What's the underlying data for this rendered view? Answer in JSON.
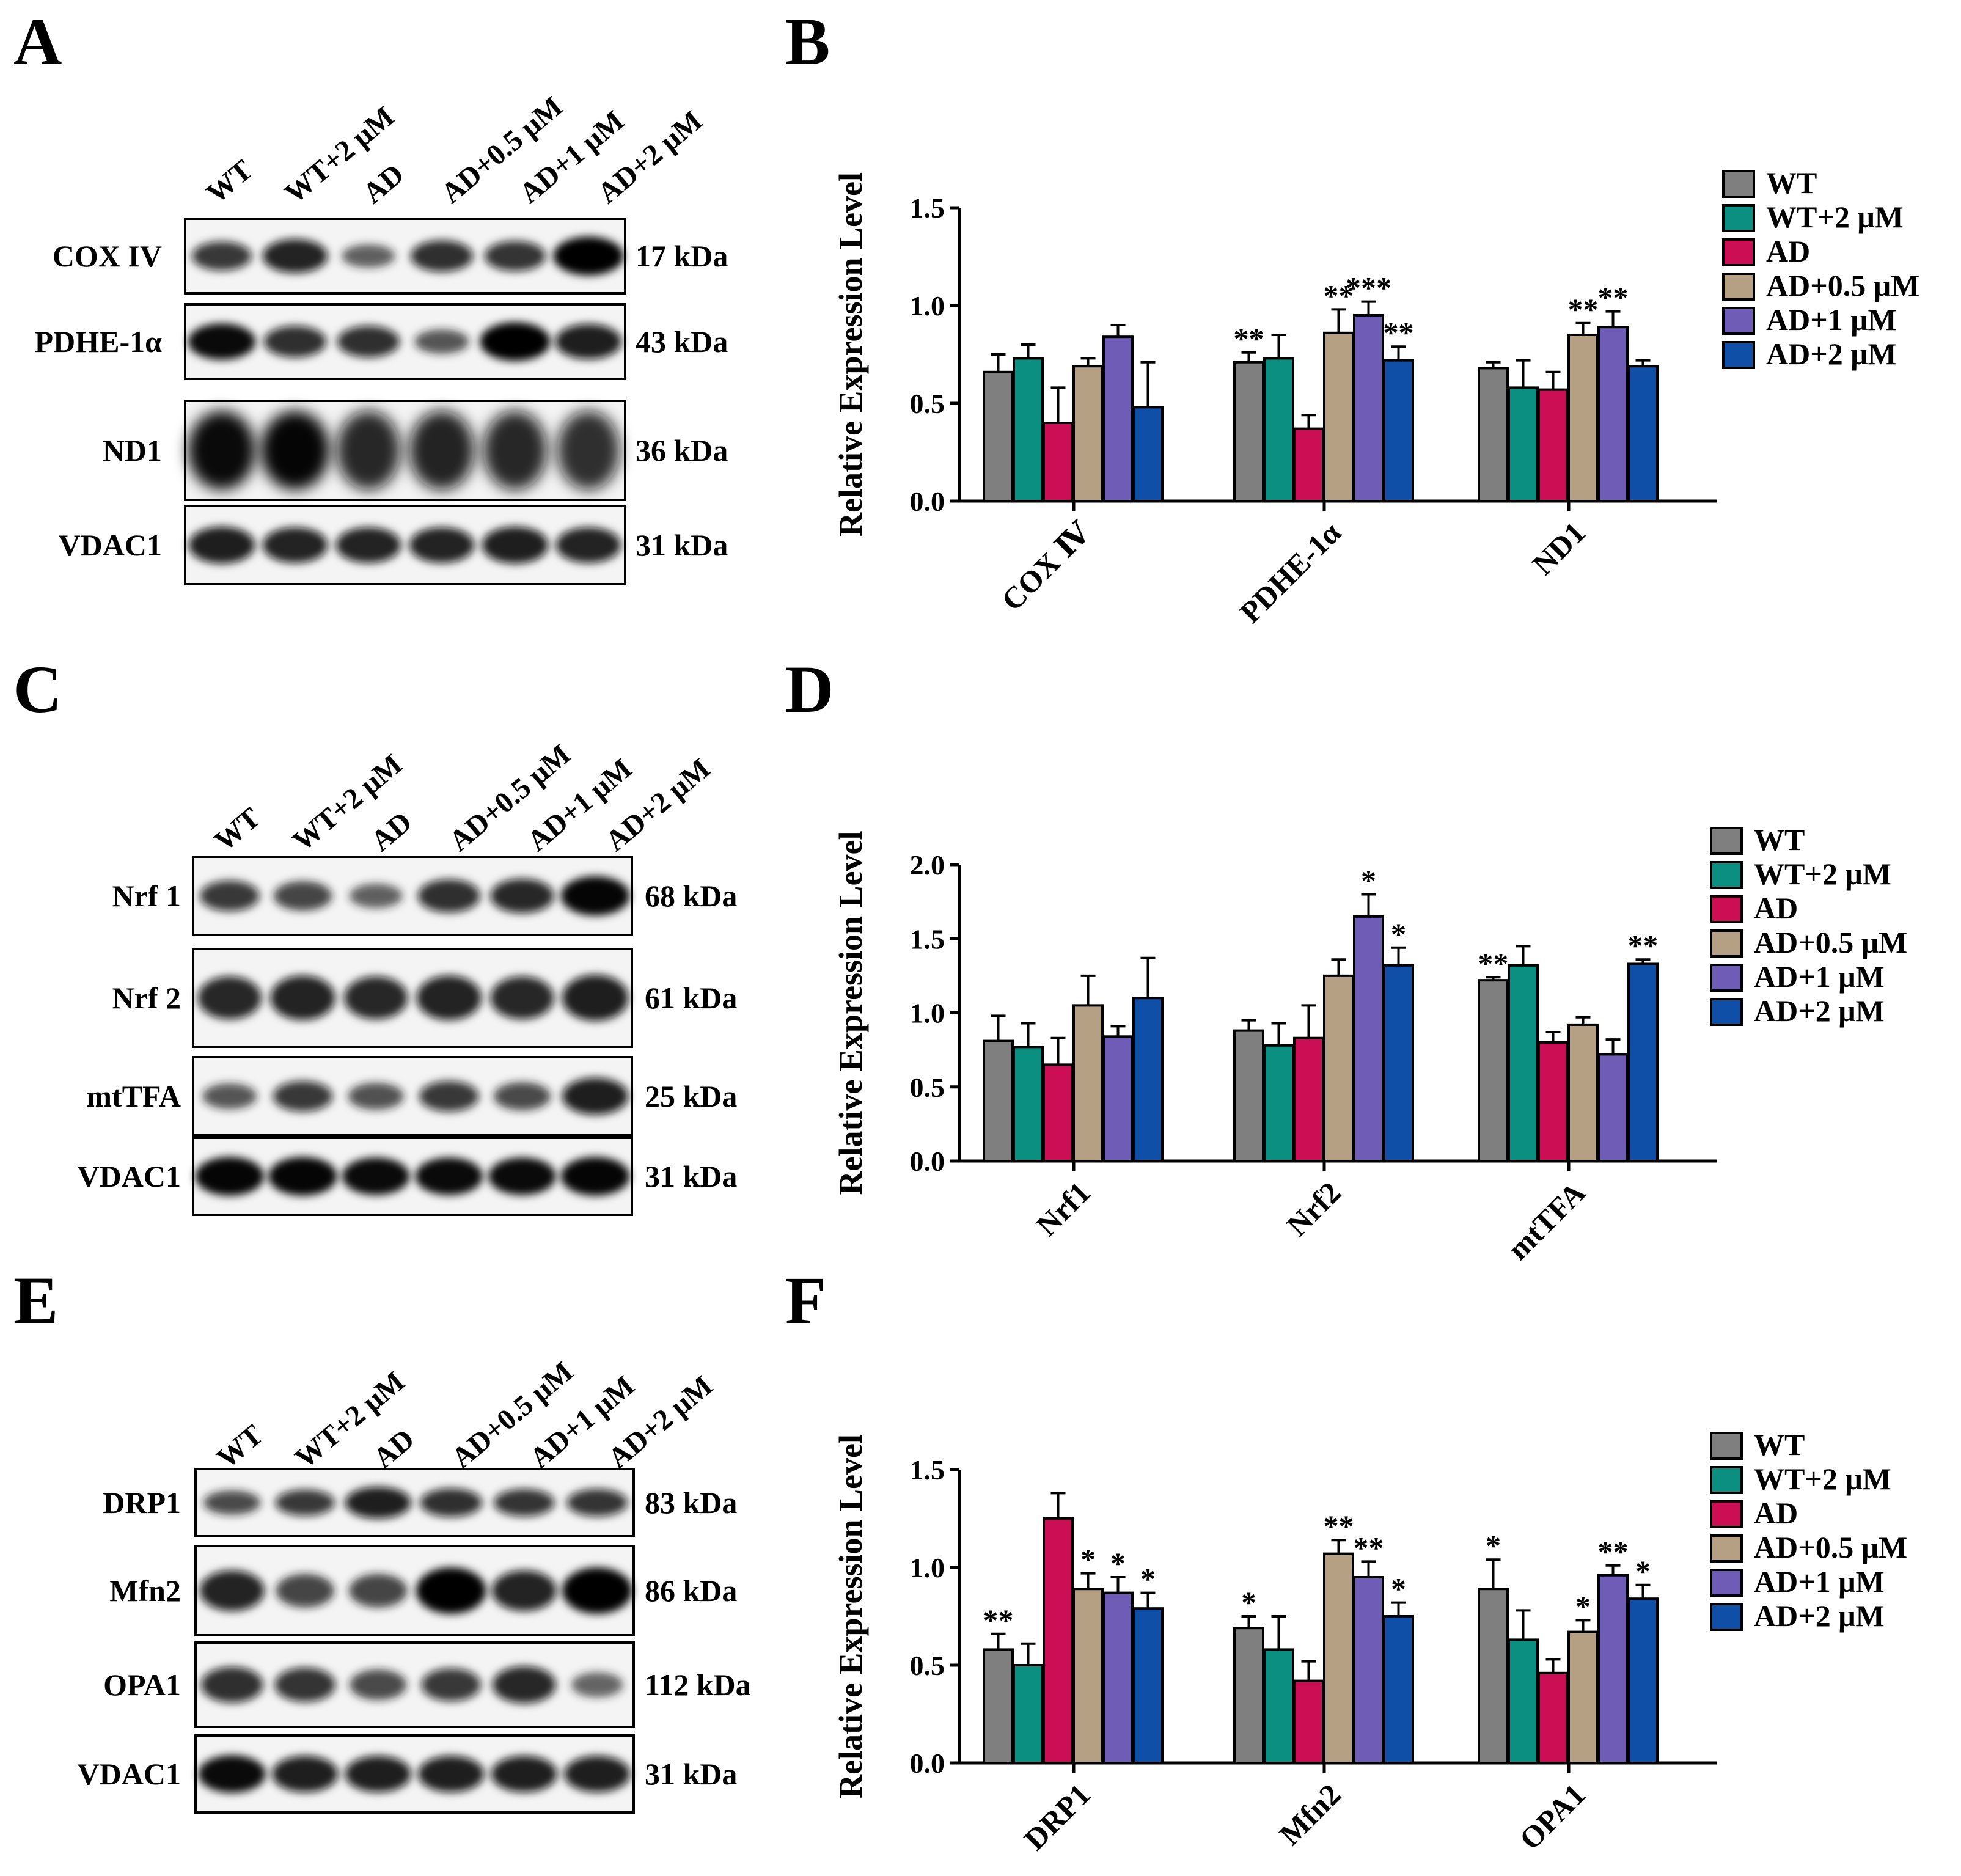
{
  "colors": {
    "WT": "#7f7f7f",
    "WT+2 μM": "#0a8f80",
    "AD": "#cc0f55",
    "AD+0.5 μM": "#b6a083",
    "AD+1 μM": "#6e5cb6",
    "AD+2 μM": "#0f4fa8"
  },
  "blots": [
    {
      "letter": "A",
      "lanes": [
        "WT",
        "WT+2 μM",
        "AD",
        "AD+0.5 μM",
        "AD+1 μM",
        "AD+2 μM"
      ],
      "rows": [
        {
          "protein": "COX IV",
          "kda": "17 kDa",
          "intensities": [
            0.6,
            0.8,
            0.35,
            0.7,
            0.65,
            1.0
          ]
        },
        {
          "protein": "PDHE-1α",
          "kda": "43 kDa",
          "intensities": [
            0.9,
            0.7,
            0.7,
            0.4,
            1.0,
            0.85
          ]
        },
        {
          "protein": "ND1",
          "kda": "36 kDa",
          "intensities": [
            0.9,
            0.95,
            0.75,
            0.8,
            0.75,
            0.7
          ]
        },
        {
          "protein": "VDAC1",
          "kda": "31 kDa",
          "intensities": [
            0.85,
            0.8,
            0.8,
            0.8,
            0.85,
            0.8
          ]
        }
      ]
    },
    {
      "letter": "C",
      "lanes": [
        "WT",
        "WT+2 μM",
        "AD",
        "AD+0.5 μM",
        "AD+1 μM",
        "AD+2 μM"
      ],
      "rows": [
        {
          "protein": "Nrf 1",
          "kda": "68 kDa",
          "intensities": [
            0.6,
            0.55,
            0.35,
            0.7,
            0.75,
            0.95
          ]
        },
        {
          "protein": "Nrf 2",
          "kda": "61 kDa",
          "intensities": [
            0.75,
            0.8,
            0.75,
            0.8,
            0.75,
            0.85
          ]
        },
        {
          "protein": "mtTFA",
          "kda": "25 kDa",
          "intensities": [
            0.4,
            0.6,
            0.45,
            0.6,
            0.5,
            0.85
          ]
        },
        {
          "protein": "VDAC1",
          "kda": "31 kDa",
          "intensities": [
            0.95,
            0.95,
            0.9,
            0.9,
            0.9,
            0.95
          ]
        }
      ]
    },
    {
      "letter": "E",
      "lanes": [
        "WT",
        "WT+2 μM",
        "AD",
        "AD+0.5 μM",
        "AD+1 μM",
        "AD+2 μM"
      ],
      "rows": [
        {
          "protein": "DRP1",
          "kda": "83 kDa",
          "intensities": [
            0.5,
            0.6,
            0.85,
            0.7,
            0.65,
            0.65
          ]
        },
        {
          "protein": "Mfn2",
          "kda": "86 kDa",
          "intensities": [
            0.8,
            0.55,
            0.55,
            1.0,
            0.8,
            1.0
          ]
        },
        {
          "protein": "OPA1",
          "kda": "112 kDa",
          "intensities": [
            0.7,
            0.65,
            0.5,
            0.6,
            0.75,
            0.3
          ]
        },
        {
          "protein": "VDAC1",
          "kda": "31 kDa",
          "intensities": [
            0.9,
            0.85,
            0.85,
            0.85,
            0.85,
            0.85
          ]
        }
      ]
    }
  ],
  "chart_data": [
    {
      "letter": "B",
      "type": "bar",
      "title": "",
      "ylabel": "Relative Expression Level",
      "xlabel": "",
      "ylim": [
        0,
        1.5
      ],
      "yticks": [
        "0.0",
        "0.5",
        "1.0",
        "1.5"
      ],
      "ytick_values": [
        0,
        0.5,
        1.0,
        1.5
      ],
      "categories": [
        "COX Ⅳ",
        "PDHE-1α",
        "ND1"
      ],
      "legend_position": "top-right",
      "series": [
        {
          "name": "WT",
          "values": [
            0.66,
            0.71,
            0.68
          ],
          "errors": [
            0.09,
            0.05,
            0.03
          ],
          "sig": [
            "",
            "**",
            ""
          ]
        },
        {
          "name": "WT+2 μM",
          "values": [
            0.73,
            0.73,
            0.58
          ],
          "errors": [
            0.07,
            0.12,
            0.14
          ],
          "sig": [
            "",
            "",
            ""
          ]
        },
        {
          "name": "AD",
          "values": [
            0.4,
            0.37,
            0.57
          ],
          "errors": [
            0.18,
            0.07,
            0.09
          ],
          "sig": [
            "",
            "",
            ""
          ]
        },
        {
          "name": "AD+0.5 μM",
          "values": [
            0.69,
            0.86,
            0.85
          ],
          "errors": [
            0.04,
            0.12,
            0.06
          ],
          "sig": [
            "",
            "**",
            "**"
          ]
        },
        {
          "name": "AD+1 μM",
          "values": [
            0.84,
            0.95,
            0.89
          ],
          "errors": [
            0.06,
            0.07,
            0.08
          ],
          "sig": [
            "",
            "***",
            "**"
          ]
        },
        {
          "name": "AD+2 μM",
          "values": [
            0.48,
            0.72,
            0.69
          ],
          "errors": [
            0.23,
            0.07,
            0.03
          ],
          "sig": [
            "",
            "**",
            ""
          ]
        }
      ]
    },
    {
      "letter": "D",
      "type": "bar",
      "title": "",
      "ylabel": "Relative Expression Level",
      "xlabel": "",
      "ylim": [
        0,
        2.0
      ],
      "yticks": [
        "0.0",
        "0.5",
        "1.0",
        "1.5",
        "2.0"
      ],
      "ytick_values": [
        0,
        0.5,
        1.0,
        1.5,
        2.0
      ],
      "categories": [
        "Nrf1",
        "Nrf2",
        "mtTFA"
      ],
      "legend_position": "top-right",
      "series": [
        {
          "name": "WT",
          "values": [
            0.81,
            0.88,
            1.22
          ],
          "errors": [
            0.17,
            0.07,
            0.02
          ],
          "sig": [
            "",
            "",
            "**"
          ]
        },
        {
          "name": "WT+2 μM",
          "values": [
            0.77,
            0.78,
            1.32
          ],
          "errors": [
            0.16,
            0.15,
            0.13
          ],
          "sig": [
            "",
            "",
            ""
          ]
        },
        {
          "name": "AD",
          "values": [
            0.65,
            0.83,
            0.8
          ],
          "errors": [
            0.18,
            0.22,
            0.07
          ],
          "sig": [
            "",
            "",
            ""
          ]
        },
        {
          "name": "AD+0.5 μM",
          "values": [
            1.05,
            1.25,
            0.92
          ],
          "errors": [
            0.2,
            0.11,
            0.05
          ],
          "sig": [
            "",
            "",
            ""
          ]
        },
        {
          "name": "AD+1 μM",
          "values": [
            0.84,
            1.65,
            0.72
          ],
          "errors": [
            0.07,
            0.15,
            0.1
          ],
          "sig": [
            "",
            "*",
            ""
          ]
        },
        {
          "name": "AD+2 μM",
          "values": [
            1.1,
            1.32,
            1.33
          ],
          "errors": [
            0.27,
            0.12,
            0.03
          ],
          "sig": [
            "",
            "*",
            "**"
          ]
        }
      ]
    },
    {
      "letter": "F",
      "type": "bar",
      "title": "",
      "ylabel": "Relative Expression Level",
      "xlabel": "",
      "ylim": [
        0,
        1.5
      ],
      "yticks": [
        "0.0",
        "0.5",
        "1.0",
        "1.5"
      ],
      "ytick_values": [
        0,
        0.5,
        1.0,
        1.5
      ],
      "categories": [
        "DRP1",
        "Mfn2",
        "OPA1"
      ],
      "legend_position": "top-right",
      "series": [
        {
          "name": "WT",
          "values": [
            0.58,
            0.69,
            0.89
          ],
          "errors": [
            0.08,
            0.06,
            0.15
          ],
          "sig": [
            "**",
            "*",
            "*"
          ]
        },
        {
          "name": "WT+2 μM",
          "values": [
            0.5,
            0.58,
            0.63
          ],
          "errors": [
            0.11,
            0.17,
            0.15
          ],
          "sig": [
            "",
            "",
            ""
          ]
        },
        {
          "name": "AD",
          "values": [
            1.25,
            0.42,
            0.46
          ],
          "errors": [
            0.13,
            0.1,
            0.07
          ],
          "sig": [
            "",
            "",
            ""
          ]
        },
        {
          "name": "AD+0.5 μM",
          "values": [
            0.89,
            1.07,
            0.67
          ],
          "errors": [
            0.08,
            0.07,
            0.06
          ],
          "sig": [
            "*",
            "**",
            "*"
          ]
        },
        {
          "name": "AD+1 μM",
          "values": [
            0.87,
            0.95,
            0.96
          ],
          "errors": [
            0.08,
            0.08,
            0.05
          ],
          "sig": [
            "*",
            "**",
            "**"
          ]
        },
        {
          "name": "AD+2 μM",
          "values": [
            0.79,
            0.75,
            0.84
          ],
          "errors": [
            0.08,
            0.07,
            0.07
          ],
          "sig": [
            "*",
            "*",
            "*"
          ]
        }
      ]
    }
  ]
}
